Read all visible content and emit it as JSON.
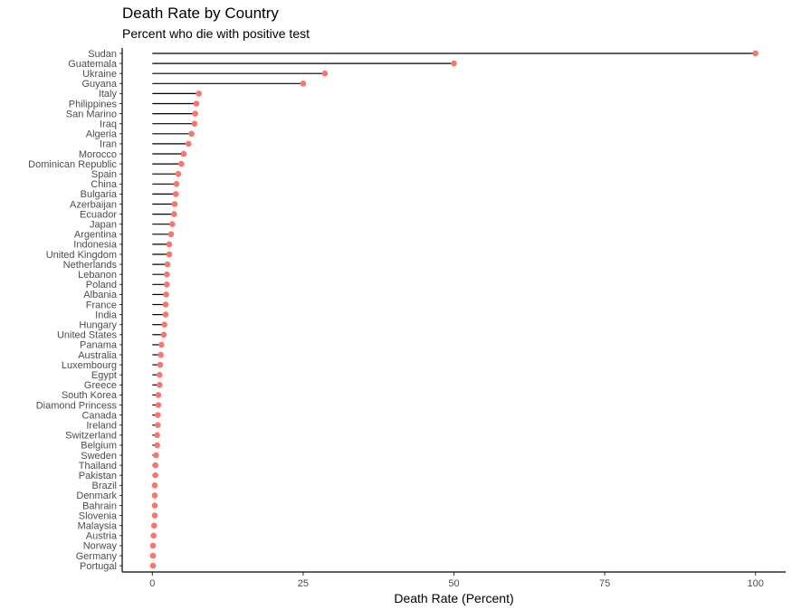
{
  "chart_data": {
    "type": "lollipop",
    "title": "Death Rate by Country",
    "subtitle": "Percent who die with positive test",
    "xlabel": "Death Rate (Percent)",
    "ylabel": "",
    "xlim": [
      -5,
      105
    ],
    "xticks": [
      0,
      25,
      50,
      75,
      100
    ],
    "grid": false,
    "colors": {
      "point": "#f8766d",
      "stem": "#000000",
      "axis": "#000000"
    },
    "categories": [
      "Sudan",
      "Guatemala",
      "Ukraine",
      "Guyana",
      "Italy",
      "Philippines",
      "San Marino",
      "Iraq",
      "Algeria",
      "Iran",
      "Morocco",
      "Dominican Republic",
      "Spain",
      "China",
      "Bulgaria",
      "Azerbaijan",
      "Ecuador",
      "Japan",
      "Argentina",
      "Indonesia",
      "United Kingdom",
      "Netherlands",
      "Lebanon",
      "Poland",
      "Albania",
      "France",
      "India",
      "Hungary",
      "United States",
      "Panama",
      "Australia",
      "Luxembourg",
      "Egypt",
      "Greece",
      "South Korea",
      "Diamond Princess",
      "Canada",
      "Ireland",
      "Switzerland",
      "Belgium",
      "Sweden",
      "Thailand",
      "Pakistan",
      "Brazil",
      "Denmark",
      "Bahrain",
      "Slovenia",
      "Malaysia",
      "Austria",
      "Norway",
      "Germany",
      "Portugal"
    ],
    "values": [
      100,
      50,
      28.6,
      25,
      7.7,
      7.3,
      7.1,
      7.0,
      6.5,
      6.0,
      5.2,
      4.8,
      4.3,
      4.0,
      3.9,
      3.7,
      3.6,
      3.3,
      3.1,
      2.8,
      2.8,
      2.5,
      2.4,
      2.4,
      2.3,
      2.2,
      2.2,
      2.0,
      1.9,
      1.5,
      1.4,
      1.3,
      1.2,
      1.2,
      1.0,
      1.0,
      0.9,
      0.9,
      0.8,
      0.8,
      0.6,
      0.5,
      0.5,
      0.4,
      0.4,
      0.4,
      0.4,
      0.3,
      0.2,
      0.1,
      0.1,
      0.1
    ]
  }
}
